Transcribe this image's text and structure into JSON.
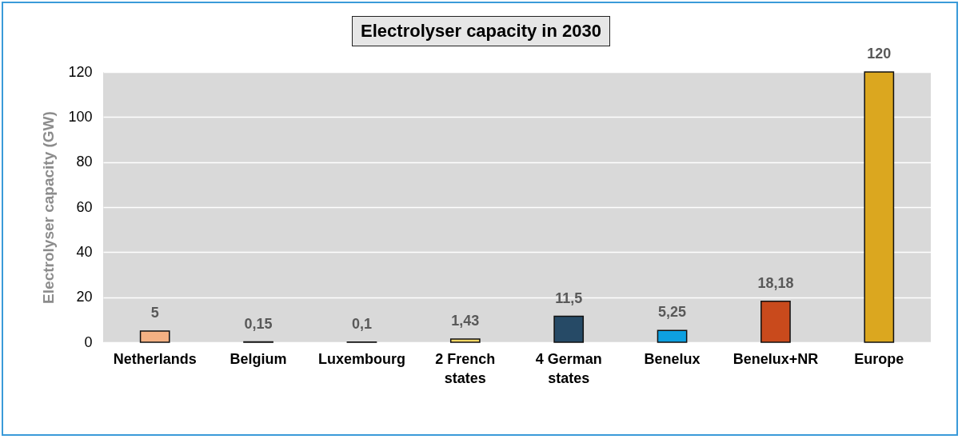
{
  "chart_data": {
    "type": "bar",
    "title": "Electrolyser capacity in 2030",
    "ylabel": "Electrolyser capacity (GW)",
    "categories": [
      "Netherlands",
      "Belgium",
      "Luxembourg",
      "2 French states",
      "4 German states",
      "Benelux",
      "Benelux+NR",
      "Europe"
    ],
    "values": [
      5,
      0.15,
      0.1,
      1.43,
      11.5,
      5.25,
      18.18,
      120
    ],
    "value_labels": [
      "5",
      "0,15",
      "0,1",
      "1,43",
      "11,5",
      "5,25",
      "18,18",
      "120"
    ],
    "colors": [
      "#f4b183",
      "#a5a5a5",
      "#7f7f7f",
      "#ffd966",
      "#264a66",
      "#0ea0e0",
      "#c94a1c",
      "#dba71f"
    ],
    "ylim": [
      0,
      120
    ],
    "yticks": [
      0,
      20,
      40,
      60,
      80,
      100,
      120
    ],
    "grid": "y"
  }
}
